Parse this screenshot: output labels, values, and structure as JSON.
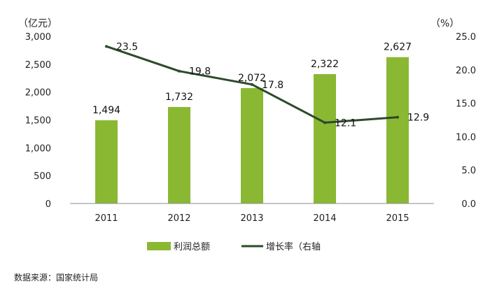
{
  "chart_data": {
    "type": "bar",
    "categories": [
      "2011",
      "2012",
      "2013",
      "2014",
      "2015"
    ],
    "series": [
      {
        "name": "利润总额",
        "type": "bar",
        "axis": "left",
        "values": [
          1494,
          1732,
          2072,
          2322,
          2627
        ],
        "labels": [
          "1,494",
          "1,732",
          "2,072",
          "2,322",
          "2,627"
        ],
        "color": "#8AB833"
      },
      {
        "name": "增长率（右轴",
        "type": "line",
        "axis": "right",
        "values": [
          23.5,
          19.8,
          17.8,
          12.1,
          12.9
        ],
        "labels": [
          "23.5",
          "19.8",
          "17.8",
          "12.1",
          "12.9"
        ],
        "color": "#2C4A2A"
      }
    ],
    "y_left": {
      "unit": "（亿元）",
      "ylim": [
        0,
        3000
      ],
      "ticks": [
        0,
        500,
        1000,
        1500,
        2000,
        2500,
        3000
      ],
      "tick_labels": [
        "0",
        "500",
        "1,000",
        "1,500",
        "2,000",
        "2,500",
        "3,000"
      ]
    },
    "y_right": {
      "unit": "（%）",
      "ylim": [
        0,
        25
      ],
      "ticks": [
        0,
        5,
        10,
        15,
        20,
        25
      ],
      "tick_labels": [
        "0.0",
        "5.0",
        "10.0",
        "15.0",
        "20.0",
        "25.0"
      ]
    },
    "grid": false,
    "legend_position": "bottom"
  },
  "source": "数据来源：国家统计局"
}
